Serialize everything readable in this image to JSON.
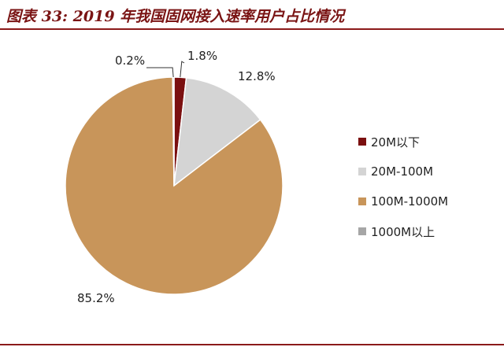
{
  "title": "图表 33: 2019 年我国固网接入速率用户占比情况",
  "chart_data": {
    "type": "pie",
    "categories": [
      "20M以下",
      "20M-100M",
      "100M-1000M",
      "1000M以上"
    ],
    "values": [
      1.8,
      12.8,
      85.2,
      0.2
    ],
    "data_labels": [
      "1.8%",
      "12.8%",
      "85.2%",
      "0.2%"
    ],
    "colors": [
      "#7b1010",
      "#d4d4d4",
      "#c8955a",
      "#a6a6a6"
    ],
    "legend_position": "right"
  }
}
